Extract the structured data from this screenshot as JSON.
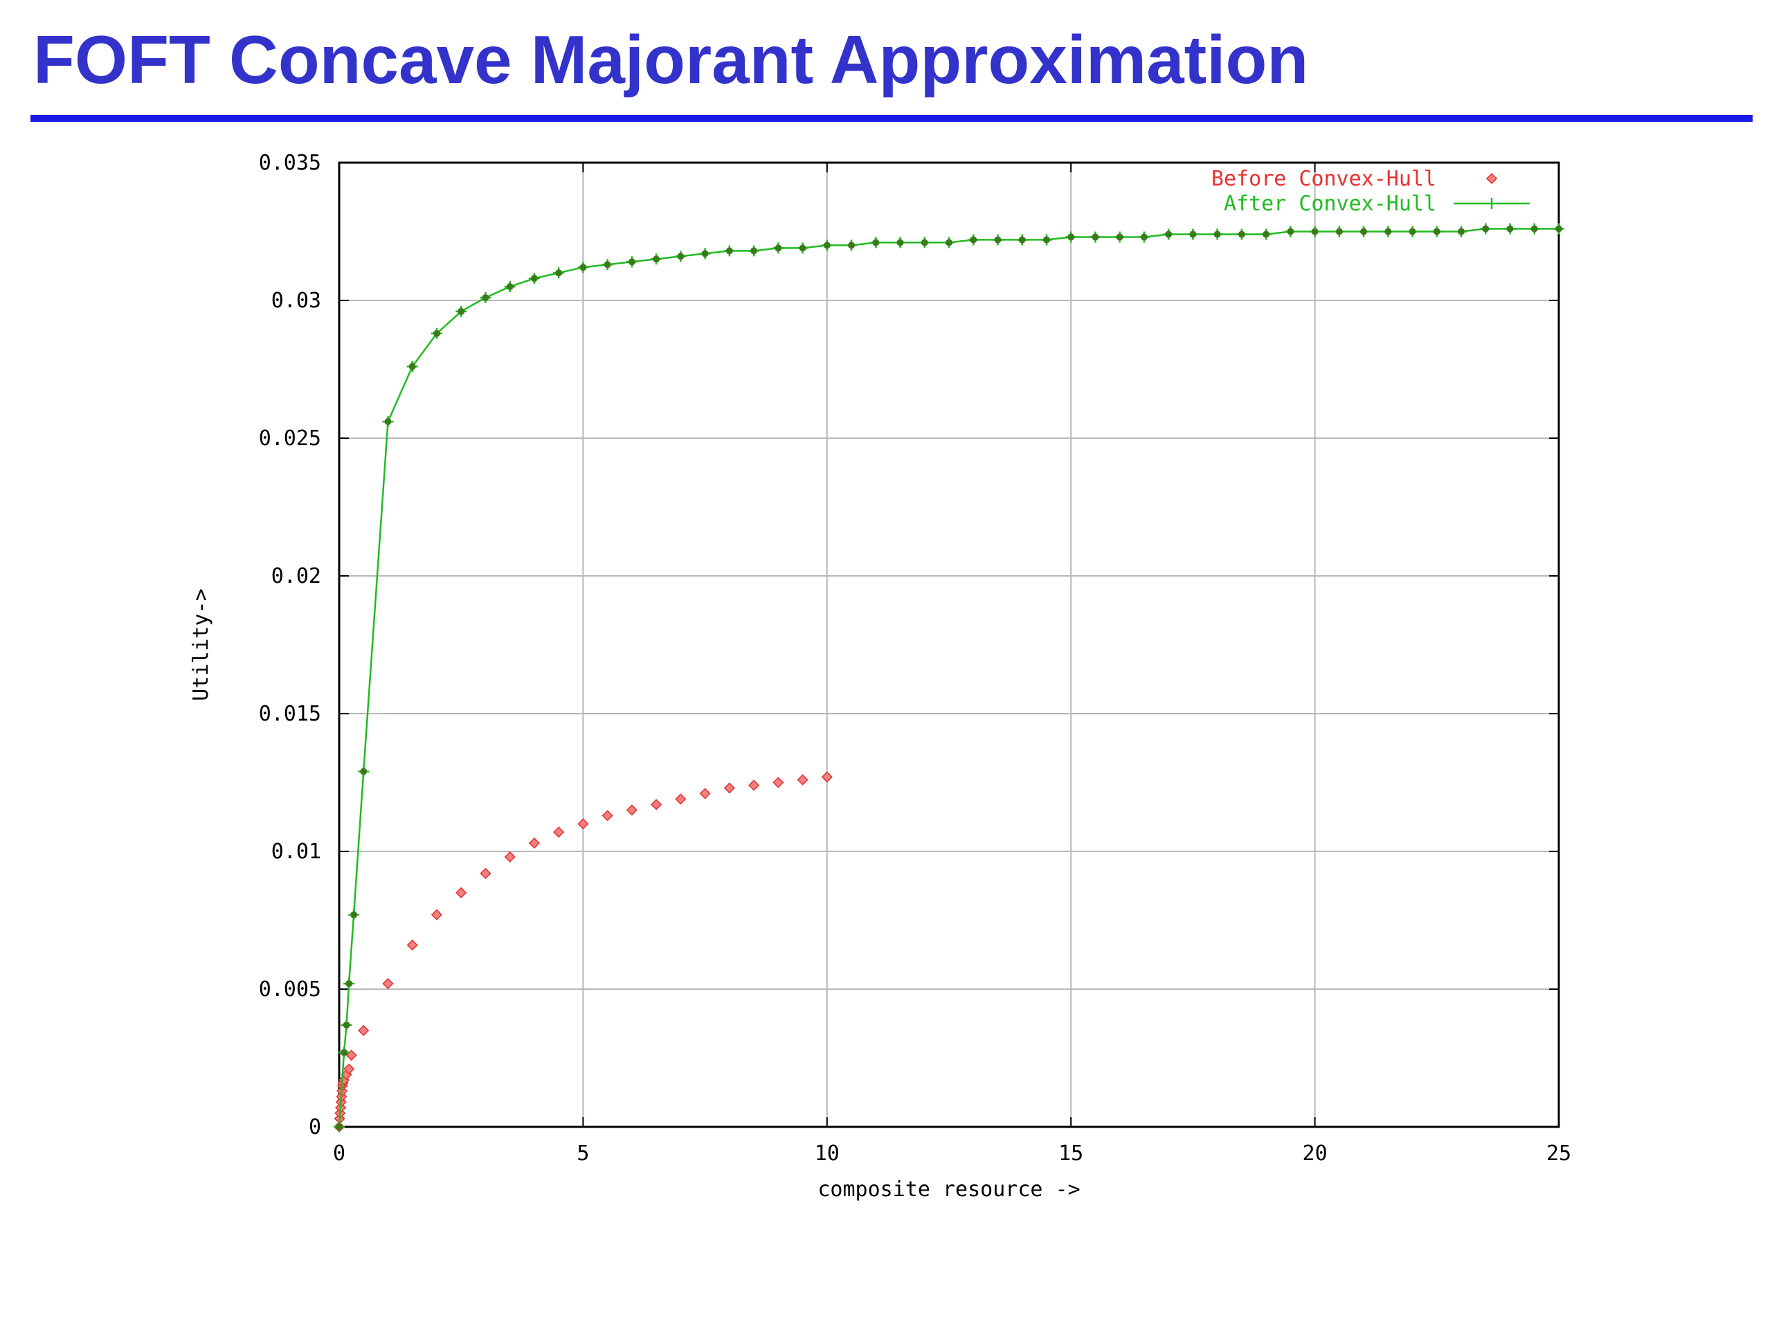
{
  "page": {
    "title": "FOFT Concave Majorant Approximation",
    "accent_color": "#3333cc",
    "rule_color": "#1a1ae6"
  },
  "chart_data": {
    "type": "scatter",
    "xlabel": "composite resource ->",
    "ylabel": "Utility->",
    "xlim": [
      0,
      25
    ],
    "ylim": [
      0,
      0.035
    ],
    "xticks": [
      "0",
      "5",
      "10",
      "15",
      "20",
      "25"
    ],
    "yticks": [
      "0",
      "0.005",
      "0.01",
      "0.015",
      "0.02",
      "0.025",
      "0.03",
      "0.035"
    ],
    "grid": true,
    "legend_position": "top-right",
    "series": [
      {
        "name": "Before Convex-Hull",
        "color": "#e83030",
        "marker": "diamond",
        "line": false,
        "x": [
          0,
          0.01,
          0.02,
          0.03,
          0.04,
          0.05,
          0.06,
          0.07,
          0.08,
          0.1,
          0.15,
          0.2,
          0.25,
          0.5,
          1,
          1.5,
          2,
          2.5,
          3,
          3.5,
          4,
          4.5,
          5,
          5.5,
          6,
          6.5,
          7,
          7.5,
          8,
          8.5,
          9,
          9.5,
          10
        ],
        "y": [
          0,
          0.0003,
          0.0005,
          0.0007,
          0.0009,
          0.0011,
          0.0013,
          0.0015,
          0.0016,
          0.0017,
          0.0019,
          0.0021,
          0.0026,
          0.0035,
          0.0052,
          0.0066,
          0.0077,
          0.0085,
          0.0092,
          0.0098,
          0.0103,
          0.0107,
          0.011,
          0.0113,
          0.0115,
          0.0117,
          0.0119,
          0.0121,
          0.0123,
          0.0124,
          0.0125,
          0.0126,
          0.0127
        ]
      },
      {
        "name": "After Convex-Hull",
        "color": "#22bb22",
        "marker": "plus",
        "line": true,
        "x": [
          0,
          0.1,
          0.15,
          0.2,
          0.3,
          0.5,
          1,
          1.5,
          2,
          2.5,
          3,
          3.5,
          4,
          4.5,
          5,
          5.5,
          6,
          6.5,
          7,
          7.5,
          8,
          8.5,
          9,
          9.5,
          10,
          10.5,
          11,
          11.5,
          12,
          12.5,
          13,
          13.5,
          14,
          14.5,
          15,
          15.5,
          16,
          16.5,
          17,
          17.5,
          18,
          18.5,
          19,
          19.5,
          20,
          20.5,
          21,
          21.5,
          22,
          22.5,
          23,
          23.5,
          24,
          24.5,
          25
        ],
        "y": [
          0,
          0.0027,
          0.0037,
          0.0052,
          0.0077,
          0.0129,
          0.0256,
          0.0276,
          0.0288,
          0.0296,
          0.0301,
          0.0305,
          0.0308,
          0.031,
          0.0312,
          0.0313,
          0.0314,
          0.0315,
          0.0316,
          0.0317,
          0.0318,
          0.0318,
          0.0319,
          0.0319,
          0.032,
          0.032,
          0.0321,
          0.0321,
          0.0321,
          0.0321,
          0.0322,
          0.0322,
          0.0322,
          0.0322,
          0.0323,
          0.0323,
          0.0323,
          0.0323,
          0.0324,
          0.0324,
          0.0324,
          0.0324,
          0.0324,
          0.0325,
          0.0325,
          0.0325,
          0.0325,
          0.0325,
          0.0325,
          0.0325,
          0.0325,
          0.0326,
          0.0326,
          0.0326,
          0.0326
        ]
      }
    ]
  }
}
